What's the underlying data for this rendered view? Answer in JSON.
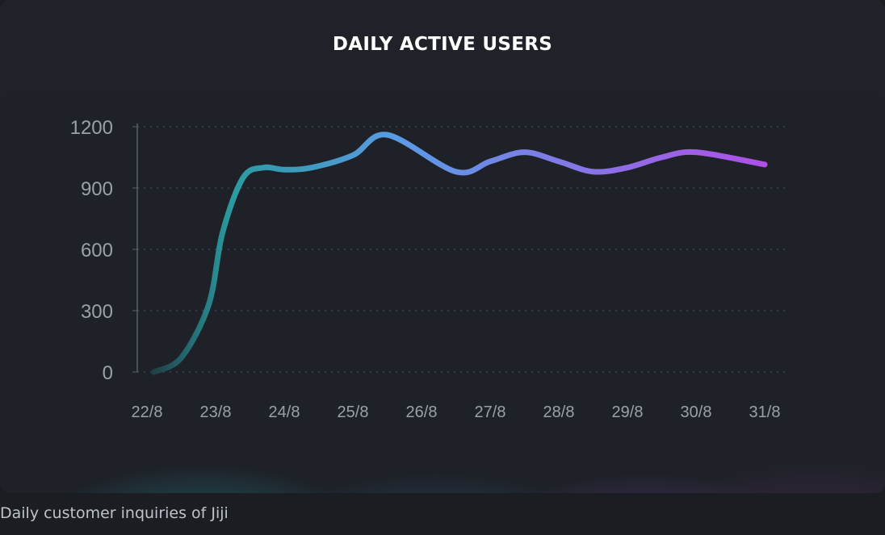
{
  "header": {
    "title": "DAILY ACTIVE USERS"
  },
  "caption": "Daily customer inquiries of Jiji",
  "chart_data": {
    "type": "line",
    "title": "DAILY ACTIVE USERS",
    "xlabel": "",
    "ylabel": "",
    "categories": [
      "22/8",
      "23/8",
      "24/8",
      "25/8",
      "26/8",
      "27/8",
      "28/8",
      "29/8",
      "30/8",
      "31/8"
    ],
    "x": [
      "22/8",
      "22/8",
      "23/8",
      "23/8",
      "23/8",
      "24/8",
      "24/8",
      "25/8",
      "25/8",
      "26/8",
      "26/8",
      "27/8",
      "27/8",
      "28/8",
      "28/8",
      "29/8",
      "29/8",
      "30/8",
      "31/8"
    ],
    "x_index": [
      0.1,
      0.5,
      0.9,
      1.1,
      1.4,
      1.7,
      2.0,
      2.4,
      3.0,
      3.5,
      4.5,
      5.0,
      5.5,
      6.0,
      6.5,
      7.0,
      7.5,
      8.0,
      9.0
    ],
    "series": [
      {
        "values": [
          0,
          70,
          330,
          680,
          950,
          1000,
          990,
          1000,
          1060,
          1160,
          980,
          1030,
          1075,
          1030,
          980,
          1000,
          1050,
          1075,
          1015
        ]
      }
    ],
    "yticks": [
      0,
      300,
      600,
      900,
      1200
    ],
    "ylim": [
      0,
      1200
    ],
    "grid": true,
    "colors": {
      "line_start": "#1f3c42",
      "line_teal": "#2a9ba0",
      "line_blue": "#5b9be6",
      "line_purple": "#b24ee6",
      "axis": "#5a6068",
      "grid": "#4a4f57",
      "tick_label": "#9aa0a8"
    }
  }
}
